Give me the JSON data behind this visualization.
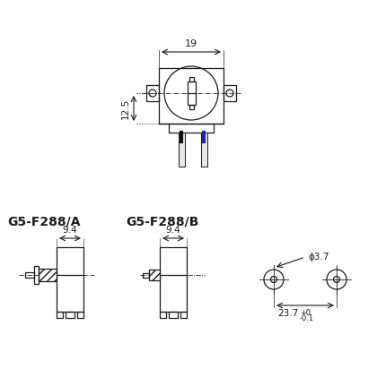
{
  "bg_color": "#ffffff",
  "line_color": "#1a1a1a",
  "title_A": "G5-F288/A",
  "title_B": "G5-F288/B",
  "dim_19": "19",
  "dim_12_5": "12.5",
  "dim_9_4": "9.4",
  "dim_3_7": "ϕ3.7",
  "dim_23_7": "23.7",
  "wire1_color": "#111111",
  "wire2_color": "#2222aa",
  "wire_white": "#e8e8e8"
}
